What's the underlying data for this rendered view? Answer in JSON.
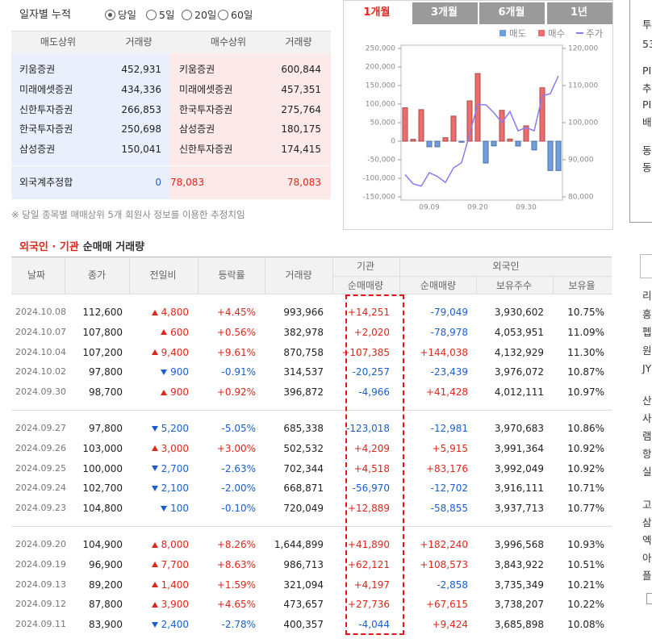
{
  "period_selector": {
    "label": "일자별 누적",
    "options": [
      "당일",
      "5일",
      "20일",
      "60일"
    ],
    "selected": 0
  },
  "brokers": {
    "headers": [
      "매도상위",
      "거래량",
      "매수상위",
      "거래량"
    ],
    "rows": [
      [
        "키움증권",
        "452,931",
        "키움증권",
        "600,844"
      ],
      [
        "미래에셋증권",
        "434,336",
        "미래에셋증권",
        "457,351"
      ],
      [
        "신한투자증권",
        "266,853",
        "한국투자증권",
        "275,764"
      ],
      [
        "한국투자증권",
        "250,698",
        "삼성증권",
        "180,175"
      ],
      [
        "삼성증권",
        "150,041",
        "신한투자증권",
        "174,415"
      ]
    ],
    "foreign_total": {
      "label": "외국계추정합",
      "sell": "0",
      "net": "78,083",
      "buy": "78,083"
    }
  },
  "note": "※ 당일 종목별 매매상위 5개 회원사 정보를 이용한 추정치임",
  "chart_tabs": {
    "tabs": [
      "1개월",
      "3개월",
      "6개월",
      "1년"
    ],
    "selected": 0
  },
  "chart_data": {
    "type": "bar",
    "categories": [
      null,
      null,
      null,
      "09.09",
      null,
      null,
      null,
      null,
      null,
      "09.20",
      null,
      null,
      null,
      null,
      null,
      "09.30",
      null,
      null,
      null,
      null
    ],
    "series": [
      {
        "name": "매도",
        "color": "#6f9fe2",
        "values": [
          null,
          null,
          null,
          -15000,
          -15000,
          null,
          null,
          -2858,
          null,
          null,
          -58855,
          -12702,
          null,
          null,
          -12981,
          null,
          -23439,
          null,
          -78978,
          -79049
        ]
      },
      {
        "name": "매수",
        "color": "#ef6c6c",
        "values": [
          90000,
          5000,
          85000,
          null,
          null,
          9424,
          67615,
          null,
          108573,
          182240,
          null,
          null,
          83176,
          5915,
          null,
          41428,
          null,
          144038,
          null,
          null
        ]
      },
      {
        "name": "주가",
        "color": "#8a7cf0",
        "type": "line",
        "axis": "y2",
        "values": [
          86000,
          83500,
          82900,
          86500,
          85500,
          83900,
          87800,
          89200,
          96900,
          104900,
          104800,
          102700,
          100000,
          103000,
          97800,
          98700,
          97800,
          107200,
          107800,
          112600
        ]
      }
    ],
    "ylim": [
      -150000,
      250000
    ],
    "yticks": [
      {
        "value": -150000,
        "label": "-150,000"
      },
      {
        "value": -100000,
        "label": "-100,000"
      },
      {
        "value": -50000,
        "label": "-50,000"
      },
      0,
      {
        "value": 50000,
        "label": "50,000"
      },
      {
        "value": 100000,
        "label": "100,000"
      },
      {
        "value": 150000,
        "label": "150,000"
      },
      {
        "value": 200000,
        "label": "200,000"
      },
      {
        "value": 250000,
        "label": "250,000"
      }
    ],
    "y2lim": [
      80000,
      120000
    ],
    "y2ticks": [
      {
        "value": 80000,
        "label": "80,000"
      },
      {
        "value": 90000,
        "label": "90,000"
      },
      {
        "value": 100000,
        "label": "100,000"
      },
      {
        "value": 110000,
        "label": "110,000"
      },
      {
        "value": 120000,
        "label": "120,000"
      }
    ],
    "legend": "top-right"
  },
  "section_title": {
    "highlight": "외국인 · 기관",
    "rest": "순매매 거래량"
  },
  "table": {
    "headers": {
      "date": "날짜",
      "close": "종가",
      "change": "전일비",
      "rate": "등락률",
      "volume": "거래량",
      "institution": "기관",
      "foreign": "외국인",
      "inst_net": "순매매량",
      "foreign_net": "순매매량",
      "holdings": "보유주수",
      "ratio": "보유율"
    },
    "row_groups": [
      [
        [
          "2024.10.08",
          "112,600",
          "up",
          "4,800",
          "+4.45%",
          "993,966",
          "+14,251",
          "-79,049",
          "3,930,602",
          "10.75%"
        ],
        [
          "2024.10.07",
          "107,800",
          "up",
          "600",
          "+0.56%",
          "382,978",
          "+2,020",
          "-78,978",
          "4,053,951",
          "11.09%"
        ],
        [
          "2024.10.04",
          "107,200",
          "up",
          "9,400",
          "+9.61%",
          "870,758",
          "+107,385",
          "+144,038",
          "4,132,929",
          "11.30%"
        ],
        [
          "2024.10.02",
          "97,800",
          "down",
          "900",
          "-0.91%",
          "314,537",
          "-20,257",
          "-23,439",
          "3,976,072",
          "10.87%"
        ],
        [
          "2024.09.30",
          "98,700",
          "up",
          "900",
          "+0.92%",
          "396,872",
          "-4,966",
          "+41,428",
          "4,012,111",
          "10.97%"
        ]
      ],
      [
        [
          "2024.09.27",
          "97,800",
          "down",
          "5,200",
          "-5.05%",
          "685,338",
          "-123,018",
          "-12,981",
          "3,970,683",
          "10.86%"
        ],
        [
          "2024.09.26",
          "103,000",
          "up",
          "3,000",
          "+3.00%",
          "502,532",
          "+4,209",
          "+5,915",
          "3,991,364",
          "10.92%"
        ],
        [
          "2024.09.25",
          "100,000",
          "down",
          "2,700",
          "-2.63%",
          "702,344",
          "+4,518",
          "+83,176",
          "3,992,049",
          "10.92%"
        ],
        [
          "2024.09.24",
          "102,700",
          "down",
          "2,100",
          "-2.00%",
          "668,871",
          "-56,970",
          "-12,702",
          "3,916,111",
          "10.71%"
        ],
        [
          "2024.09.23",
          "104,800",
          "down",
          "100",
          "-0.10%",
          "720,049",
          "+12,889",
          "-58,855",
          "3,937,713",
          "10.77%"
        ]
      ],
      [
        [
          "2024.09.20",
          "104,900",
          "up",
          "8,000",
          "+8.26%",
          "1,644,899",
          "+41,890",
          "+182,240",
          "3,996,568",
          "10.93%"
        ],
        [
          "2024.09.19",
          "96,900",
          "up",
          "7,700",
          "+8.63%",
          "986,713",
          "+62,121",
          "+108,573",
          "3,843,922",
          "10.51%"
        ],
        [
          "2024.09.13",
          "89,200",
          "up",
          "1,400",
          "+1.59%",
          "321,094",
          "+4,197",
          "-2,858",
          "3,735,349",
          "10.21%"
        ],
        [
          "2024.09.12",
          "87,800",
          "up",
          "3,900",
          "+4.65%",
          "473,657",
          "+27,736",
          "+67,615",
          "3,738,207",
          "10.22%"
        ],
        [
          "2024.09.11",
          "83,900",
          "down",
          "2,400",
          "-2.78%",
          "400,357",
          "-4,044",
          "+9,424",
          "3,685,898",
          "10.08%"
        ]
      ]
    ]
  },
  "sidebar_fragments": [
    "투",
    "53",
    "PI",
    "추",
    "PI",
    "배",
    "동",
    "동",
    "리",
    "흥",
    "펩",
    "원",
    "JY",
    "산",
    "사",
    "램",
    "항",
    "실",
    "고",
    "삼",
    "엑",
    "아",
    "플"
  ]
}
